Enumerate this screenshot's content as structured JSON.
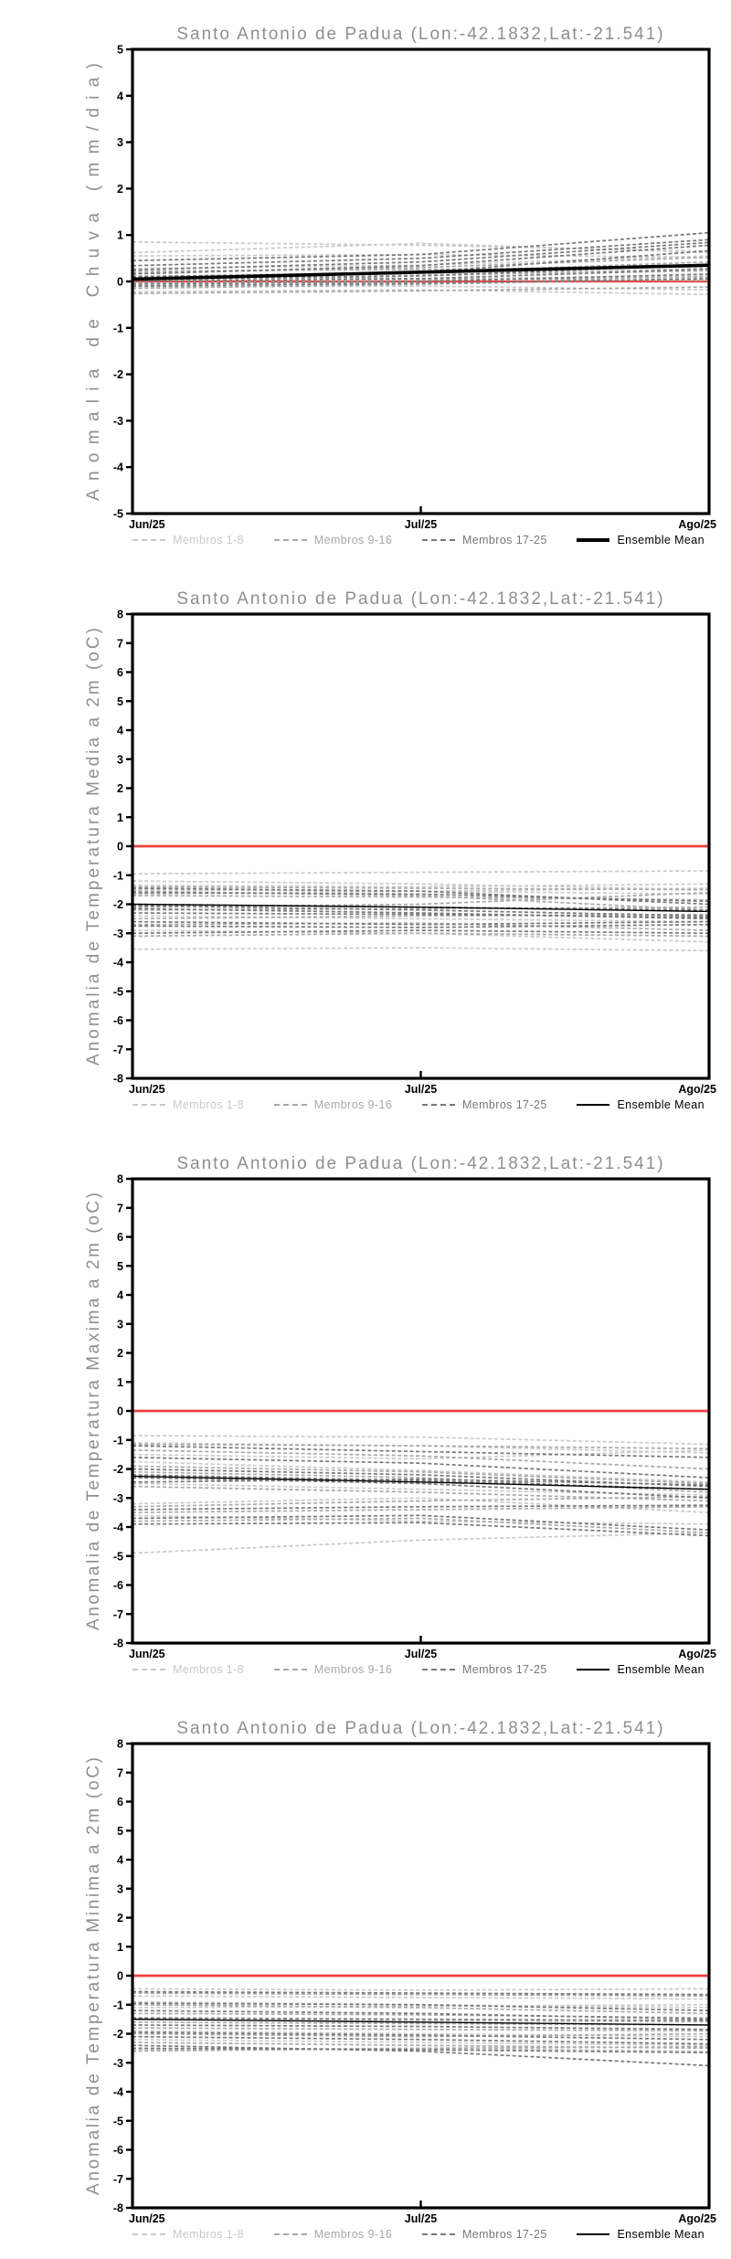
{
  "page": {
    "background": "#ffffff",
    "axis_color": "#000000"
  },
  "chart_data": [
    {
      "type": "line",
      "title": "Santo Antonio de Padua (Lon:-42.1832,Lat:-21.541)",
      "ylabel": "Anomalia de Chuva (mm/dia)",
      "ylim": [
        -5,
        5
      ],
      "ytick_step": 1,
      "x_categories": [
        "Jun/25",
        "Jul/25",
        "Ago/25"
      ],
      "legend_position": "bottom",
      "grid": false,
      "zero_line": {
        "value": 0,
        "color": "#ee3f3f",
        "width": 2.2
      },
      "groups": [
        {
          "name": "Membros 1-8",
          "color": "#c9c9c9",
          "style": "dashed",
          "members": [
            [
              0.85,
              0.78,
              0.65
            ],
            [
              0.62,
              0.82,
              0.62
            ],
            [
              0.55,
              0.58,
              0.52
            ],
            [
              0.28,
              0.35,
              0.55
            ],
            [
              0.12,
              0.15,
              0.22
            ],
            [
              0.02,
              0.06,
              0.12
            ],
            [
              -0.12,
              -0.1,
              -0.18
            ],
            [
              -0.22,
              -0.18,
              -0.28
            ]
          ]
        },
        {
          "name": "Membros 9-16",
          "color": "#a8a8a8",
          "style": "dashed",
          "members": [
            [
              0.18,
              0.3,
              0.52
            ],
            [
              0.08,
              0.2,
              0.42
            ],
            [
              0.02,
              0.12,
              0.28
            ],
            [
              -0.04,
              0.02,
              0.1
            ],
            [
              0.1,
              0.06,
              0.02
            ],
            [
              -0.15,
              -0.06,
              0.06
            ],
            [
              0.22,
              0.26,
              0.32
            ],
            [
              -0.26,
              -0.2,
              -0.12
            ]
          ]
        },
        {
          "name": "Membros 17-25",
          "color": "#787878",
          "style": "dashed",
          "members": [
            [
              0.45,
              0.58,
              1.05
            ],
            [
              0.34,
              0.5,
              0.9
            ],
            [
              0.25,
              0.42,
              0.84
            ],
            [
              0.16,
              0.34,
              0.78
            ],
            [
              0.1,
              0.2,
              0.66
            ],
            [
              0.05,
              0.12,
              0.36
            ],
            [
              0.0,
              0.06,
              0.26
            ],
            [
              -0.06,
              0.0,
              0.16
            ],
            [
              -0.1,
              -0.04,
              0.06
            ]
          ]
        }
      ],
      "ensemble_mean": {
        "name": "Ensemble Mean",
        "color": "#000000",
        "width": 3.6,
        "values": [
          0.05,
          0.2,
          0.35
        ]
      }
    },
    {
      "type": "line",
      "title": "Santo Antonio de Padua (Lon:-42.1832,Lat:-21.541)",
      "ylabel": "Anomalia de Temperatura Media a 2m (oC)",
      "ylim": [
        -8,
        8
      ],
      "ytick_step": 1,
      "x_categories": [
        "Jun/25",
        "Jul/25",
        "Ago/25"
      ],
      "legend_position": "bottom",
      "grid": false,
      "zero_line": {
        "value": 0,
        "color": "#ee3f3f",
        "width": 2.8
      },
      "groups": [
        {
          "name": "Membros 1-8",
          "color": "#c9c9c9",
          "style": "dashed",
          "members": [
            [
              -0.95,
              -0.9,
              -0.85
            ],
            [
              -1.2,
              -1.3,
              -1.5
            ],
            [
              -1.35,
              -1.4,
              -1.3
            ],
            [
              -1.5,
              -1.55,
              -1.65
            ],
            [
              -1.65,
              -1.55,
              -1.45
            ],
            [
              -2.4,
              -2.5,
              -2.6
            ],
            [
              -2.9,
              -3.0,
              -3.3
            ],
            [
              -3.55,
              -3.5,
              -3.6
            ]
          ]
        },
        {
          "name": "Membros 9-16",
          "color": "#a8a8a8",
          "style": "dashed",
          "members": [
            [
              -1.4,
              -1.45,
              -1.5
            ],
            [
              -1.55,
              -1.7,
              -2.2
            ],
            [
              -1.7,
              -1.75,
              -1.85
            ],
            [
              -2.1,
              -2.0,
              -1.6
            ],
            [
              -2.2,
              -2.15,
              -2.1
            ],
            [
              -2.5,
              -2.4,
              -2.35
            ],
            [
              -2.7,
              -2.65,
              -2.9
            ],
            [
              -3.1,
              -3.0,
              -3.1
            ]
          ]
        },
        {
          "name": "Membros 17-25",
          "color": "#787878",
          "style": "dashed",
          "members": [
            [
              -1.45,
              -1.55,
              -2.0
            ],
            [
              -1.6,
              -1.65,
              -1.9
            ],
            [
              -2.0,
              -2.1,
              -2.2
            ],
            [
              -2.05,
              -2.2,
              -2.4
            ],
            [
              -2.15,
              -2.3,
              -2.5
            ],
            [
              -2.3,
              -2.35,
              -2.45
            ],
            [
              -2.6,
              -2.7,
              -2.6
            ],
            [
              -2.75,
              -2.8,
              -2.7
            ],
            [
              -3.0,
              -2.9,
              -3.0
            ]
          ]
        }
      ],
      "ensemble_mean": {
        "name": "Ensemble Mean",
        "color": "#000000",
        "width": 1.4,
        "values": [
          -2.0,
          -2.1,
          -2.25
        ]
      }
    },
    {
      "type": "line",
      "title": "Santo Antonio de Padua (Lon:-42.1832,Lat:-21.541)",
      "ylabel": "Anomalia de Temperatura Maxima a 2m (oC)",
      "ylim": [
        -8,
        8
      ],
      "ytick_step": 1,
      "x_categories": [
        "Jun/25",
        "Jul/25",
        "Ago/25"
      ],
      "legend_position": "bottom",
      "grid": false,
      "zero_line": {
        "value": 0,
        "color": "#ee3f3f",
        "width": 2.8
      },
      "groups": [
        {
          "name": "Membros 1-8",
          "color": "#c9c9c9",
          "style": "dashed",
          "members": [
            [
              -0.85,
              -0.9,
              -1.15
            ],
            [
              -1.1,
              -1.2,
              -1.45
            ],
            [
              -1.5,
              -1.65,
              -1.35
            ],
            [
              -1.75,
              -2.05,
              -2.45
            ],
            [
              -2.5,
              -2.7,
              -2.9
            ],
            [
              -3.2,
              -3.0,
              -3.5
            ],
            [
              -3.6,
              -3.8,
              -3.9
            ],
            [
              -4.9,
              -4.45,
              -4.2
            ]
          ]
        },
        {
          "name": "Membros 9-16",
          "color": "#a8a8a8",
          "style": "dashed",
          "members": [
            [
              -1.15,
              -1.2,
              -1.3
            ],
            [
              -1.35,
              -1.55,
              -2.0
            ],
            [
              -1.9,
              -2.1,
              -2.5
            ],
            [
              -2.1,
              -2.3,
              -2.8
            ],
            [
              -2.6,
              -2.8,
              -3.1
            ],
            [
              -3.3,
              -3.1,
              -2.95
            ],
            [
              -3.5,
              -3.4,
              -3.3
            ],
            [
              -3.8,
              -3.7,
              -4.2
            ]
          ]
        },
        {
          "name": "Membros 17-25",
          "color": "#787878",
          "style": "dashed",
          "members": [
            [
              -1.2,
              -1.4,
              -1.6
            ],
            [
              -1.6,
              -1.8,
              -2.3
            ],
            [
              -2.0,
              -2.2,
              -2.6
            ],
            [
              -2.2,
              -2.4,
              -2.7
            ],
            [
              -2.3,
              -2.5,
              -3.0
            ],
            [
              -2.45,
              -2.35,
              -2.55
            ],
            [
              -3.4,
              -3.3,
              -3.25
            ],
            [
              -3.7,
              -3.6,
              -4.1
            ],
            [
              -3.9,
              -3.85,
              -4.3
            ]
          ]
        }
      ],
      "ensemble_mean": {
        "name": "Ensemble Mean",
        "color": "#000000",
        "width": 1.4,
        "values": [
          -2.25,
          -2.45,
          -2.7
        ]
      }
    },
    {
      "type": "line",
      "title": "Santo Antonio de Padua (Lon:-42.1832,Lat:-21.541)",
      "ylabel": "Anomalia de Temperatura Minima a 2m (oC)",
      "ylim": [
        -8,
        8
      ],
      "ytick_step": 1,
      "x_categories": [
        "Jun/25",
        "Jul/25",
        "Ago/25"
      ],
      "legend_position": "bottom",
      "grid": false,
      "zero_line": {
        "value": 0,
        "color": "#ee3f3f",
        "width": 2.8
      },
      "groups": [
        {
          "name": "Membros 1-8",
          "color": "#c9c9c9",
          "style": "dashed",
          "members": [
            [
              -0.45,
              -0.5,
              -0.45
            ],
            [
              -0.7,
              -0.75,
              -0.8
            ],
            [
              -0.9,
              -1.0,
              -1.1
            ],
            [
              -1.1,
              -1.05,
              -1.0
            ],
            [
              -1.5,
              -1.55,
              -1.6
            ],
            [
              -1.9,
              -2.0,
              -2.1
            ],
            [
              -2.2,
              -2.3,
              -2.4
            ],
            [
              -2.55,
              -2.5,
              -2.6
            ]
          ]
        },
        {
          "name": "Membros 9-16",
          "color": "#a8a8a8",
          "style": "dashed",
          "members": [
            [
              -0.6,
              -0.65,
              -0.7
            ],
            [
              -1.0,
              -1.1,
              -1.3
            ],
            [
              -1.3,
              -1.35,
              -1.45
            ],
            [
              -1.6,
              -1.65,
              -1.7
            ],
            [
              -1.8,
              -1.85,
              -1.9
            ],
            [
              -2.0,
              -2.1,
              -2.0
            ],
            [
              -2.3,
              -2.4,
              -2.5
            ],
            [
              -2.6,
              -2.5,
              -2.45
            ]
          ]
        },
        {
          "name": "Membros 17-25",
          "color": "#787878",
          "style": "dashed",
          "members": [
            [
              -0.55,
              -0.6,
              -0.65
            ],
            [
              -0.95,
              -1.0,
              -1.2
            ],
            [
              -1.2,
              -1.3,
              -1.5
            ],
            [
              -1.45,
              -1.5,
              -1.55
            ],
            [
              -1.7,
              -1.75,
              -1.85
            ],
            [
              -1.95,
              -2.05,
              -2.2
            ],
            [
              -2.1,
              -2.2,
              -2.35
            ],
            [
              -2.4,
              -2.6,
              -3.1
            ],
            [
              -2.5,
              -2.55,
              -2.65
            ]
          ]
        }
      ],
      "ensemble_mean": {
        "name": "Ensemble Mean",
        "color": "#000000",
        "width": 1.4,
        "values": [
          -1.5,
          -1.6,
          -1.7
        ]
      }
    }
  ]
}
